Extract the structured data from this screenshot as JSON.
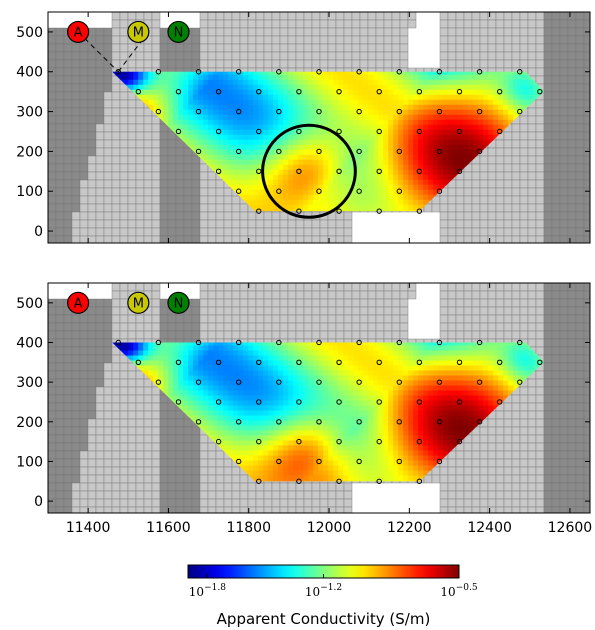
{
  "chart_data": {
    "type": "heatmap",
    "title": "",
    "x_ticks": [
      11400,
      11600,
      11800,
      12000,
      12200,
      12400,
      12600
    ],
    "y_ticks": [
      0,
      100,
      200,
      300,
      400,
      500
    ],
    "xlim": [
      11300,
      12650
    ],
    "ylim": [
      -30,
      550
    ],
    "colorbar": {
      "label": "Apparent Conductivity (S/m)",
      "scale": "log",
      "range": [
        -1.9,
        -0.5
      ],
      "ticks": [
        {
          "value": -1.8,
          "label": "10^{-1.8}",
          "base": "10",
          "exp": "−1.8"
        },
        {
          "value": -1.2,
          "label": "10^{-1.2}",
          "base": "10",
          "exp": "−1.2"
        },
        {
          "value": -0.5,
          "label": "10^{-0.5}",
          "base": "10",
          "exp": "−0.5"
        }
      ],
      "colormap": "jet"
    },
    "electrodes": [
      {
        "label": "A",
        "color": "#ff0000"
      },
      {
        "label": "M",
        "color": "#c8c800"
      },
      {
        "label": "N",
        "color": "#008000"
      }
    ],
    "panels": [
      {
        "name": "top",
        "electrode_x": {
          "A": 11375,
          "M": 11525,
          "N": 11625
        },
        "electrode_lines": true,
        "circle": {
          "x": 11950,
          "y": 150,
          "r": 110
        },
        "anomaly": {
          "x": 11950,
          "y": 150
        },
        "measurement_points": [
          [
            11475,
            400
          ],
          [
            11575,
            400
          ],
          [
            11675,
            400
          ],
          [
            11775,
            400
          ],
          [
            11875,
            400
          ],
          [
            11975,
            400
          ],
          [
            12075,
            400
          ],
          [
            12175,
            400
          ],
          [
            12275,
            400
          ],
          [
            12375,
            400
          ],
          [
            12475,
            400
          ],
          [
            11525,
            350
          ],
          [
            11625,
            350
          ],
          [
            11725,
            350
          ],
          [
            11825,
            350
          ],
          [
            11925,
            350
          ],
          [
            12025,
            350
          ],
          [
            12125,
            350
          ],
          [
            12225,
            350
          ],
          [
            12325,
            350
          ],
          [
            12425,
            350
          ],
          [
            12525,
            350
          ],
          [
            11575,
            300
          ],
          [
            11675,
            300
          ],
          [
            11775,
            300
          ],
          [
            11875,
            300
          ],
          [
            11975,
            300
          ],
          [
            12075,
            300
          ],
          [
            12175,
            300
          ],
          [
            12275,
            300
          ],
          [
            12375,
            300
          ],
          [
            12475,
            300
          ],
          [
            11625,
            250
          ],
          [
            11725,
            250
          ],
          [
            11825,
            250
          ],
          [
            11925,
            250
          ],
          [
            12025,
            250
          ],
          [
            12125,
            250
          ],
          [
            12225,
            250
          ],
          [
            12325,
            250
          ],
          [
            12425,
            250
          ],
          [
            11675,
            200
          ],
          [
            11775,
            200
          ],
          [
            11875,
            200
          ],
          [
            11975,
            200
          ],
          [
            12075,
            200
          ],
          [
            12175,
            200
          ],
          [
            12275,
            200
          ],
          [
            12375,
            200
          ],
          [
            11725,
            150
          ],
          [
            11825,
            150
          ],
          [
            11925,
            150
          ],
          [
            12025,
            150
          ],
          [
            12125,
            150
          ],
          [
            12225,
            150
          ],
          [
            12325,
            150
          ],
          [
            11775,
            100
          ],
          [
            11875,
            100
          ],
          [
            11975,
            100
          ],
          [
            12075,
            100
          ],
          [
            12175,
            100
          ],
          [
            12275,
            100
          ],
          [
            11825,
            50
          ],
          [
            11925,
            50
          ],
          [
            12025,
            50
          ],
          [
            12125,
            50
          ],
          [
            12225,
            50
          ]
        ]
      },
      {
        "name": "bottom",
        "electrode_x": {
          "A": 11375,
          "M": 11525,
          "N": 11625
        },
        "electrode_lines": false,
        "circle": null,
        "anomaly": {
          "x": 11950,
          "y": 120
        },
        "measurement_points": [
          [
            11475,
            400
          ],
          [
            11575,
            400
          ],
          [
            11675,
            400
          ],
          [
            11775,
            400
          ],
          [
            11875,
            400
          ],
          [
            11975,
            400
          ],
          [
            12075,
            400
          ],
          [
            12175,
            400
          ],
          [
            12275,
            400
          ],
          [
            12375,
            400
          ],
          [
            12475,
            400
          ],
          [
            11525,
            350
          ],
          [
            11625,
            350
          ],
          [
            11725,
            350
          ],
          [
            11825,
            350
          ],
          [
            11925,
            350
          ],
          [
            12025,
            350
          ],
          [
            12125,
            350
          ],
          [
            12225,
            350
          ],
          [
            12325,
            350
          ],
          [
            12425,
            350
          ],
          [
            12525,
            350
          ],
          [
            11575,
            300
          ],
          [
            11675,
            300
          ],
          [
            11775,
            300
          ],
          [
            11875,
            300
          ],
          [
            11975,
            300
          ],
          [
            12075,
            300
          ],
          [
            12175,
            300
          ],
          [
            12275,
            300
          ],
          [
            12375,
            300
          ],
          [
            12475,
            300
          ],
          [
            11625,
            250
          ],
          [
            11725,
            250
          ],
          [
            11825,
            250
          ],
          [
            11925,
            250
          ],
          [
            12025,
            250
          ],
          [
            12125,
            250
          ],
          [
            12225,
            250
          ],
          [
            12325,
            250
          ],
          [
            12425,
            250
          ],
          [
            11675,
            200
          ],
          [
            11775,
            200
          ],
          [
            11875,
            200
          ],
          [
            11975,
            200
          ],
          [
            12075,
            200
          ],
          [
            12175,
            200
          ],
          [
            12275,
            200
          ],
          [
            12375,
            200
          ],
          [
            11725,
            150
          ],
          [
            11825,
            150
          ],
          [
            11925,
            150
          ],
          [
            12025,
            150
          ],
          [
            12125,
            150
          ],
          [
            12225,
            150
          ],
          [
            12325,
            150
          ],
          [
            11775,
            100
          ],
          [
            11875,
            100
          ],
          [
            11975,
            100
          ],
          [
            12075,
            100
          ],
          [
            12175,
            100
          ],
          [
            12275,
            100
          ],
          [
            11825,
            50
          ],
          [
            11925,
            50
          ],
          [
            12025,
            50
          ],
          [
            12125,
            50
          ],
          [
            12225,
            50
          ]
        ]
      }
    ]
  }
}
